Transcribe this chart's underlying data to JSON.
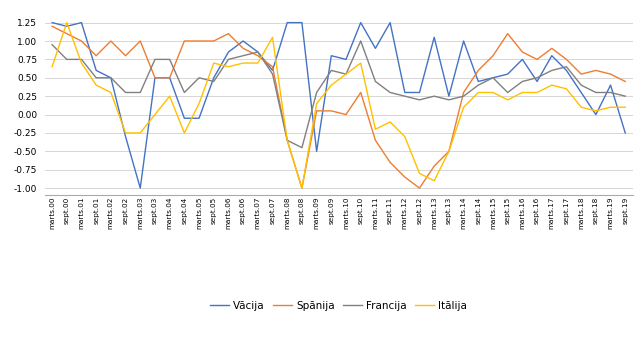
{
  "labels": [
    "marts.00",
    "sept.00",
    "marts.01",
    "sept.01",
    "marts.02",
    "sept.02",
    "marts.03",
    "sept.03",
    "marts.04",
    "sept.04",
    "marts.05",
    "sept.05",
    "marts.06",
    "sept.06",
    "marts.07",
    "sept.07",
    "marts.08",
    "sept.08",
    "marts.09",
    "sept.09",
    "marts.10",
    "sept.10",
    "marts.11",
    "sept.11",
    "marts.12",
    "sept.12",
    "marts.13",
    "sept.13",
    "marts.14",
    "sept.14",
    "marts.15",
    "sept.15",
    "marts.16",
    "sept.16",
    "marts.17",
    "sept.17",
    "marts.18",
    "sept.18",
    "marts.19",
    "sept.19"
  ],
  "Vācija": [
    1.25,
    1.2,
    1.25,
    0.6,
    0.5,
    -0.3,
    -1.0,
    0.5,
    0.5,
    -0.05,
    -0.05,
    0.5,
    0.85,
    1.0,
    0.85,
    0.6,
    1.25,
    1.25,
    -0.5,
    0.8,
    0.75,
    1.25,
    0.9,
    1.25,
    0.3,
    0.3,
    1.05,
    0.25,
    1.0,
    0.45,
    0.5,
    0.55,
    0.75,
    0.45,
    0.8,
    0.6,
    0.3,
    0.0,
    0.4,
    -0.25
  ],
  "Spānija": [
    1.2,
    1.1,
    1.0,
    0.8,
    1.0,
    0.8,
    1.0,
    0.5,
    0.5,
    1.0,
    1.0,
    1.0,
    1.1,
    0.9,
    0.8,
    0.65,
    -0.35,
    -1.0,
    0.05,
    0.05,
    0.0,
    0.3,
    -0.35,
    -0.65,
    -0.85,
    -1.0,
    -0.7,
    -0.5,
    0.3,
    0.6,
    0.8,
    1.1,
    0.85,
    0.75,
    0.9,
    0.75,
    0.55,
    0.6,
    0.55,
    0.45
  ],
  "Francija": [
    0.95,
    0.75,
    0.75,
    0.5,
    0.5,
    0.3,
    0.3,
    0.75,
    0.75,
    0.3,
    0.5,
    0.45,
    0.75,
    0.8,
    0.85,
    0.55,
    -0.35,
    -0.45,
    0.3,
    0.6,
    0.55,
    1.0,
    0.45,
    0.3,
    0.25,
    0.2,
    0.25,
    0.2,
    0.25,
    0.4,
    0.5,
    0.3,
    0.45,
    0.5,
    0.6,
    0.65,
    0.4,
    0.3,
    0.3,
    0.25
  ],
  "Itālija": [
    0.65,
    1.25,
    0.7,
    0.4,
    0.3,
    -0.25,
    -0.25,
    0.0,
    0.25,
    -0.25,
    0.15,
    0.7,
    0.65,
    0.7,
    0.7,
    1.05,
    -0.35,
    -1.0,
    0.15,
    0.4,
    0.55,
    0.7,
    -0.2,
    -0.1,
    -0.3,
    -0.8,
    -0.9,
    -0.5,
    0.1,
    0.3,
    0.3,
    0.2,
    0.3,
    0.3,
    0.4,
    0.35,
    0.1,
    0.05,
    0.1,
    0.1
  ],
  "colors": {
    "Vācija": "#4472c4",
    "Spānija": "#ed7d31",
    "Francija": "#808080",
    "Itālija": "#ffc000"
  },
  "ylim": [
    -1.1,
    1.42
  ],
  "yticks": [
    -1.0,
    -0.75,
    -0.5,
    -0.25,
    0.0,
    0.25,
    0.5,
    0.75,
    1.0,
    1.25
  ]
}
